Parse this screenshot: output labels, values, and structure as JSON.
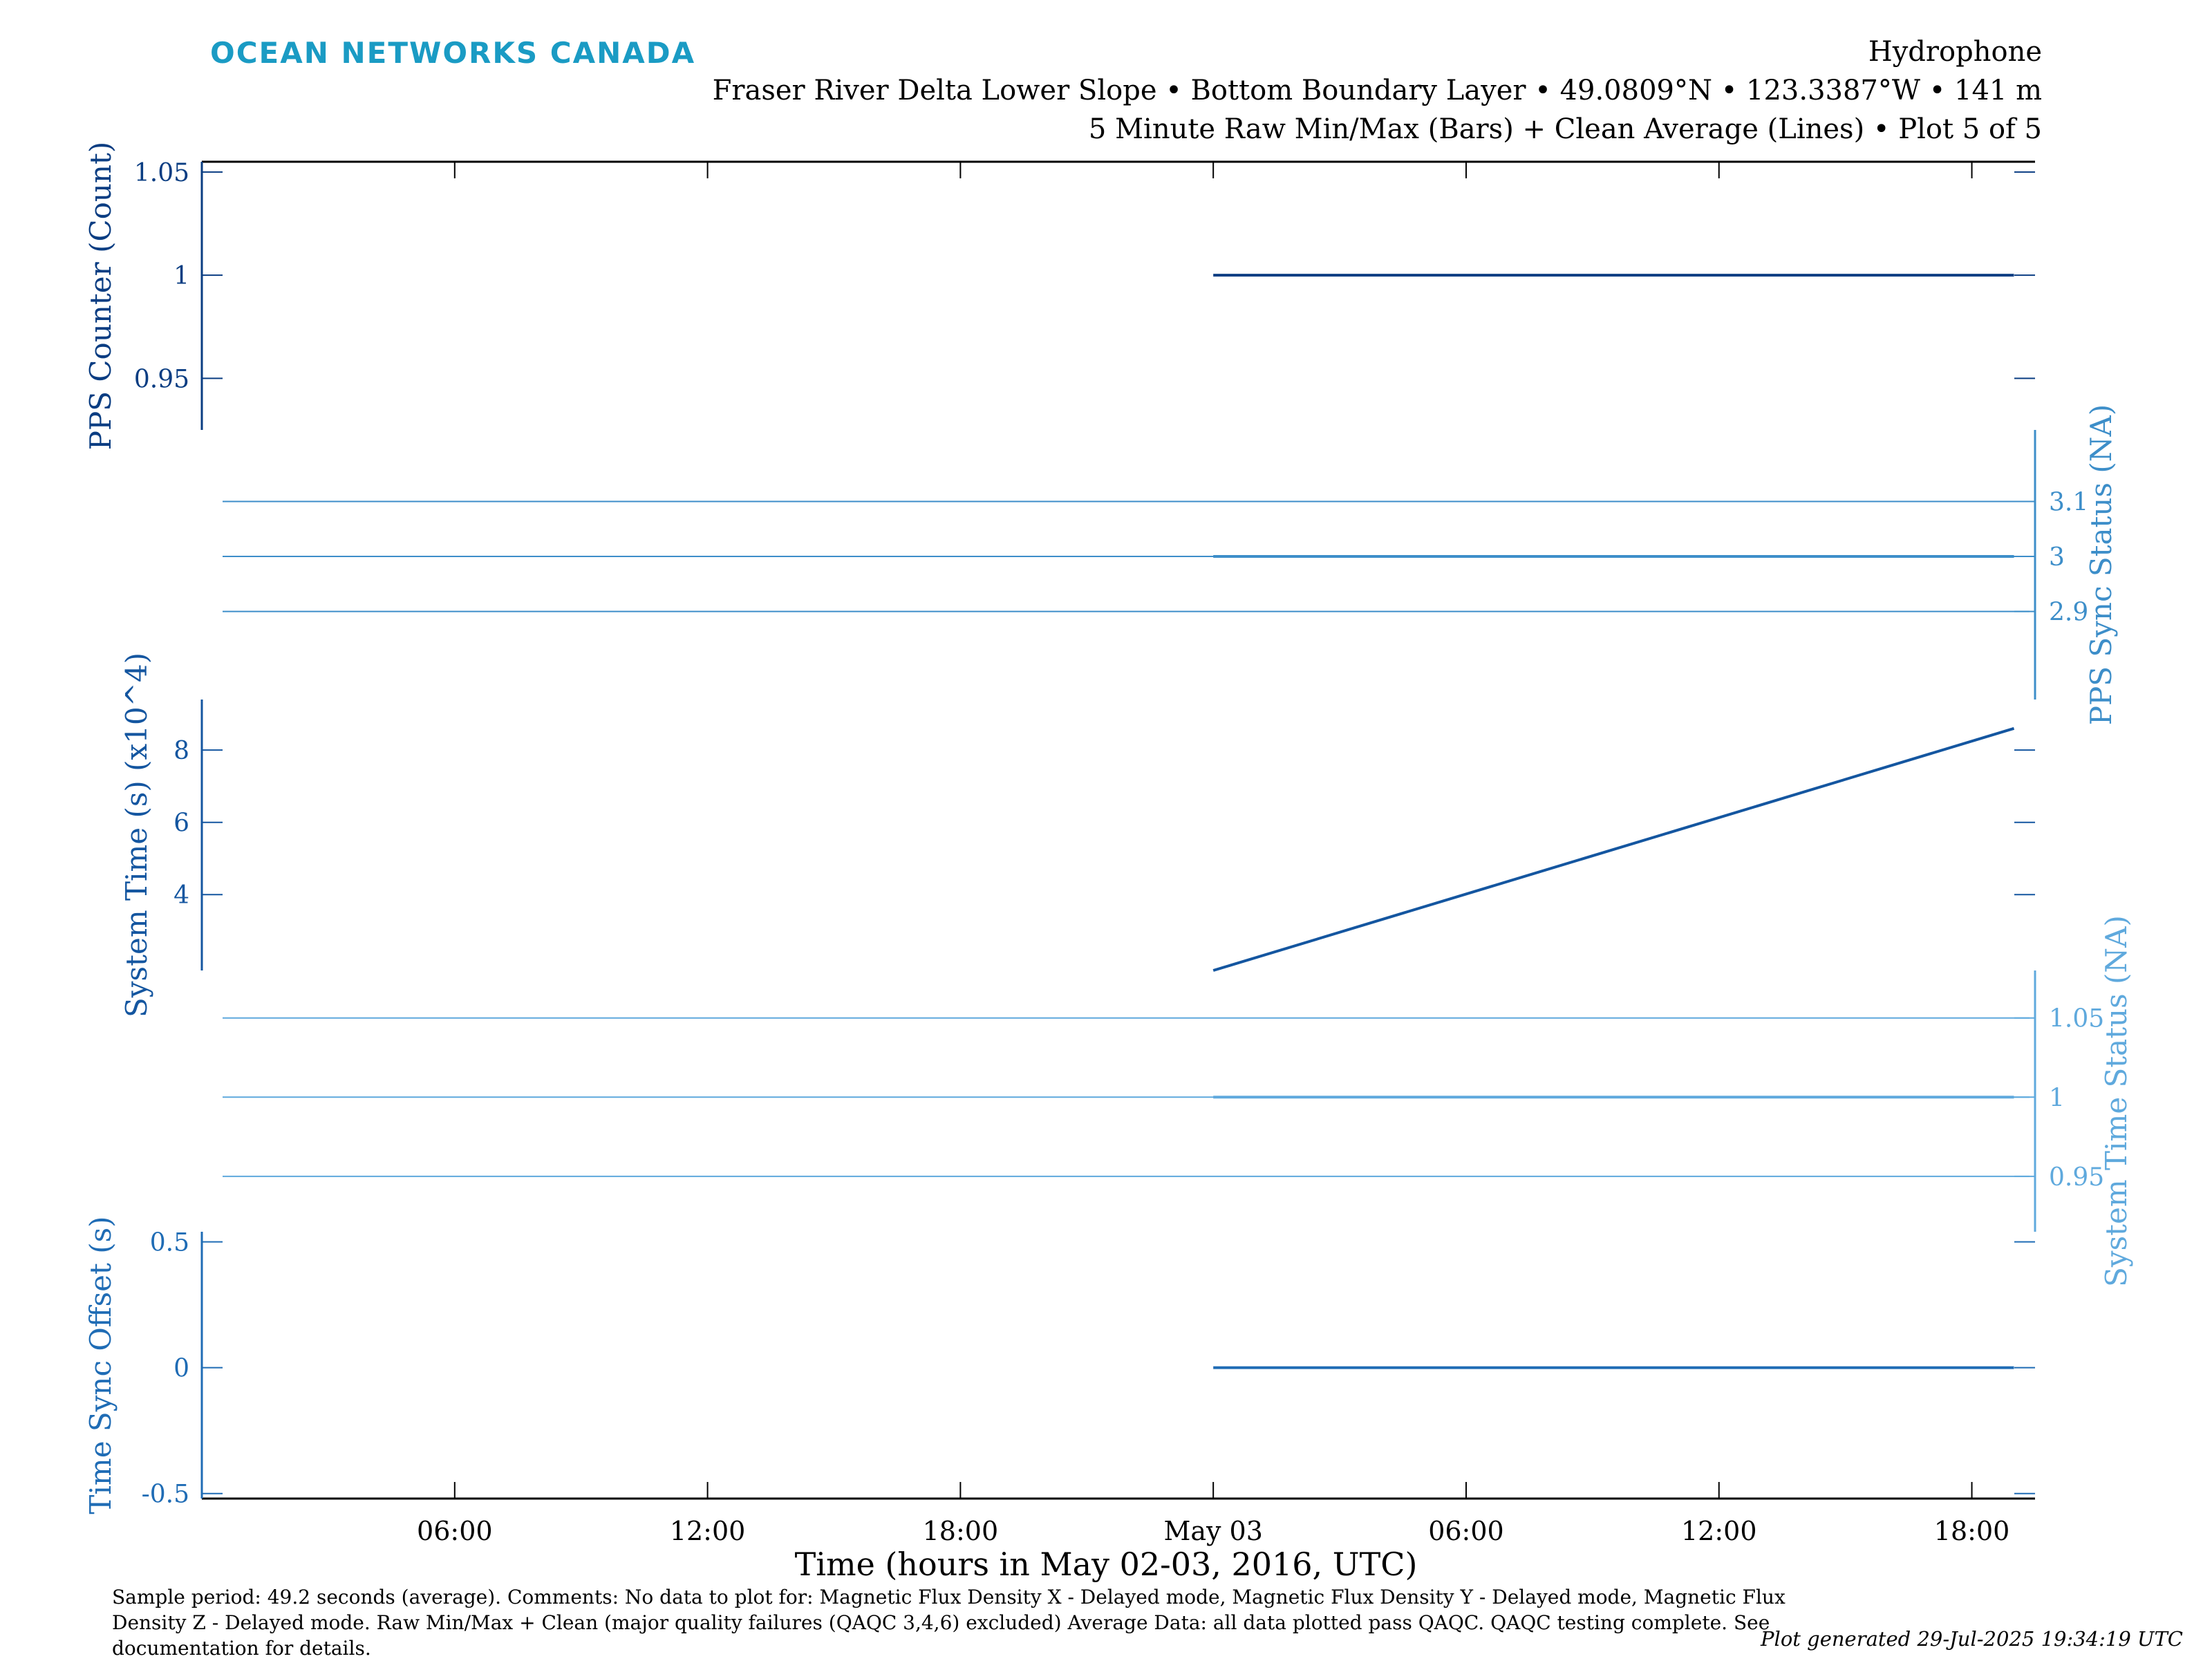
{
  "header": {
    "brand": "OCEAN NETWORKS CANADA",
    "title": "Hydrophone",
    "location_line": "Fraser River Delta Lower Slope • Bottom Boundary Layer • 49.0809°N • 123.3387°W • 141 m",
    "plot_line": "5 Minute Raw Min/Max (Bars) + Clean Average (Lines) • Plot 5 of 5"
  },
  "footer": {
    "caption": "Sample period: 49.2 seconds (average). Comments: No data to plot for: Magnetic Flux Density X - Delayed mode, Magnetic Flux Density Y - Delayed mode, Magnetic Flux Density Z - Delayed mode. Raw Min/Max + Clean (major quality failures (QAQC 3,4,6) excluded) Average Data: all data plotted pass QAQC. QAQC testing complete. See documentation for details.",
    "generated": "Plot generated 29-Jul-2025 19:34:19 UTC"
  },
  "colors": {
    "pps_counter": "#0a3d82",
    "pps_sync": "#3d8ec9",
    "system_time": "#1456a0",
    "system_time_status": "#5fa9dd",
    "time_sync_offset": "#1f6cb5",
    "frame": "#000000"
  },
  "chart_data": {
    "type": "line",
    "xlabel": "Time (hours in May 02-03, 2016, UTC)",
    "x_ticks": [
      "06:00",
      "12:00",
      "18:00",
      "May 03",
      "06:00",
      "12:00",
      "18:00"
    ],
    "x_tick_hours": [
      6,
      12,
      18,
      24,
      30,
      36,
      42
    ],
    "xlim_hours": [
      0,
      43.5
    ],
    "grid": false,
    "legend": "none",
    "series": [
      {
        "name": "PPS Counter (Count)",
        "axis": "left",
        "ylim": [
          0.925,
          1.055
        ],
        "ticks": [
          "0.95",
          "1",
          "1.05"
        ],
        "tick_values": [
          0.95,
          1,
          1.05
        ],
        "x_hours": [
          24,
          43
        ],
        "values": [
          1,
          1
        ]
      },
      {
        "name": "PPS Sync Status (NA)",
        "axis": "right",
        "ylim": [
          2.74,
          3.23
        ],
        "ticks": [
          "2.9",
          "3",
          "3.1"
        ],
        "tick_values": [
          2.9,
          3,
          3.1
        ],
        "x_hours": [
          24,
          43
        ],
        "values": [
          3,
          3
        ]
      },
      {
        "name": "System Time (s) (x10^4)",
        "axis": "left",
        "ylim": [
          1.9,
          9.4
        ],
        "ticks": [
          "4",
          "6",
          "8"
        ],
        "tick_values": [
          4,
          6,
          8
        ],
        "x_hours": [
          24,
          43
        ],
        "values": [
          1.9,
          8.6
        ]
      },
      {
        "name": "System Time Status (NA)",
        "axis": "right",
        "ylim": [
          0.915,
          1.08
        ],
        "ticks": [
          "0.95",
          "1",
          "1.05"
        ],
        "tick_values": [
          0.95,
          1,
          1.05
        ],
        "x_hours": [
          24,
          43
        ],
        "values": [
          1,
          1
        ]
      },
      {
        "name": "Time Sync Offset (s)",
        "axis": "left",
        "ylim": [
          -0.52,
          0.54
        ],
        "ticks": [
          "-0.5",
          "0",
          "0.5"
        ],
        "tick_values": [
          -0.5,
          0,
          0.5
        ],
        "x_hours": [
          24,
          43
        ],
        "values": [
          0,
          0
        ]
      }
    ]
  }
}
